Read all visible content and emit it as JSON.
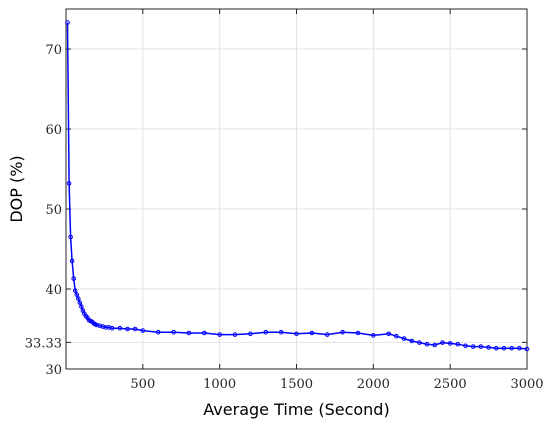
{
  "chart_data": {
    "type": "line",
    "xlabel": "Average Time (Second)",
    "ylabel": "DOP (%)",
    "xlim": [
      0,
      3000
    ],
    "ylim": [
      30,
      75
    ],
    "xticks": [
      500,
      1000,
      1500,
      2000,
      2500,
      3000
    ],
    "xtick_labels": [
      "500",
      "1000",
      "1500",
      "2000",
      "2500",
      "3000"
    ],
    "yticks": [
      30,
      33.33,
      40,
      50,
      60,
      70
    ],
    "ytick_labels": [
      "30",
      "33.33",
      "40",
      "50",
      "60",
      "70"
    ],
    "grid": true,
    "color": "#0000ff",
    "series": [
      {
        "x": [
          10,
          20,
          30,
          40,
          50,
          60,
          70,
          80,
          90,
          100,
          110,
          120,
          130,
          140,
          150,
          160,
          170,
          180,
          190,
          200,
          220,
          240,
          260,
          280,
          300,
          350,
          400,
          450,
          500,
          600,
          700,
          800,
          900,
          1000,
          1100,
          1200,
          1300,
          1400,
          1500,
          1600,
          1700,
          1800,
          1900,
          2000,
          2100,
          2150,
          2200,
          2250,
          2300,
          2350,
          2400,
          2450,
          2500,
          2550,
          2600,
          2650,
          2700,
          2750,
          2800,
          2850,
          2900,
          2950,
          3000
        ],
        "y": [
          73.3,
          53.2,
          46.5,
          43.5,
          41.3,
          39.8,
          39.3,
          38.8,
          38.3,
          37.8,
          37.3,
          36.9,
          36.6,
          36.4,
          36.1,
          36.0,
          35.9,
          35.7,
          35.6,
          35.5,
          35.4,
          35.3,
          35.2,
          35.2,
          35.1,
          35.1,
          35.0,
          35.0,
          34.8,
          34.6,
          34.6,
          34.5,
          34.5,
          34.3,
          34.3,
          34.4,
          34.6,
          34.6,
          34.4,
          34.5,
          34.3,
          34.6,
          34.5,
          34.2,
          34.4,
          34.1,
          33.8,
          33.5,
          33.3,
          33.1,
          33.0,
          33.3,
          33.2,
          33.1,
          32.9,
          32.8,
          32.8,
          32.7,
          32.6,
          32.6,
          32.6,
          32.6,
          32.5
        ]
      }
    ]
  }
}
